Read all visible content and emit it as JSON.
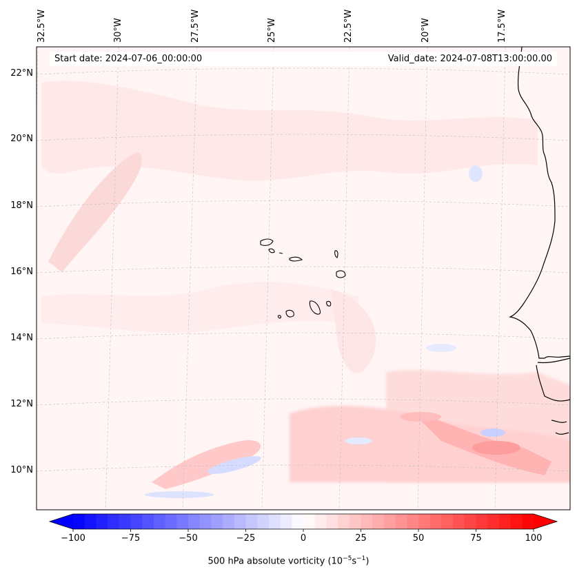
{
  "map": {
    "start_label": "Start date: 2024-07-06_00:00:00",
    "valid_label": "Valid_date: 2024-07-08T13:00:00.00",
    "lon_labels": [
      "32.5°W",
      "30°W",
      "27.5°W",
      "25°W",
      "22.5°W",
      "20°W",
      "17.5°W"
    ],
    "lat_labels": [
      "22°N",
      "20°N",
      "18°N",
      "16°N",
      "14°N",
      "12°N",
      "10°N"
    ],
    "lon_range_deg": [
      -33,
      -16.0
    ],
    "lat_range_deg": [
      8.9,
      22.8
    ],
    "gridlines": true,
    "projection": "conic (curved graticule)",
    "features": [
      "Cape Verde islands",
      "West African coastline (Senegal, Gambia, Guinea-Bissau, Mauritania)"
    ]
  },
  "colorbar": {
    "label_prefix": "500 hPa absolute vorticity (10",
    "label_exp1": "−5",
    "label_mid": "s",
    "label_exp2": "−1",
    "label_suffix": ")",
    "ticks": [
      "−100",
      "−75",
      "−50",
      "−25",
      "0",
      "25",
      "50",
      "75",
      "100"
    ],
    "range": [
      -100,
      100
    ],
    "colormap": "bwr",
    "extend": "both",
    "min_color": "#0000ff",
    "mid_color": "#ffffff",
    "max_color": "#ff0000"
  }
}
